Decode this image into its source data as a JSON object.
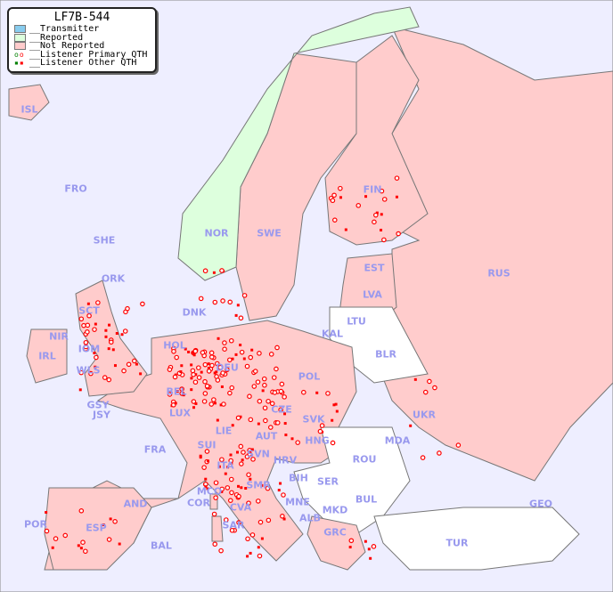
{
  "title": "LF7B-544",
  "legend": [
    {
      "label": "__Transmitter",
      "color": "#88ccee"
    },
    {
      "label": "__Reported",
      "color": "#ddffdd"
    },
    {
      "label": "__Not Reported",
      "color": "#ffcccc"
    },
    {
      "label": "__Listener Primary QTH",
      "marker": "circle"
    },
    {
      "label": "__Listener Other QTH",
      "marker": "square"
    }
  ],
  "colors": {
    "sea": "#eeeeff",
    "not_reported": "#ffcccc",
    "reported": "#ddffdd",
    "no_data": "#ffffff",
    "label": "#9999ee",
    "listener": "#ff0000"
  },
  "countries": [
    "ISL",
    "FRO",
    "SHE",
    "ORK",
    "NOR",
    "SWE",
    "FIN",
    "EST",
    "LVA",
    "RUS",
    "LTU",
    "KAL",
    "BLR",
    "DNK",
    "HOL",
    "POL",
    "DEU",
    "BEL",
    "LUX",
    "IRL",
    "WLS",
    "IOM",
    "NIR",
    "SCT",
    "GSY",
    "JSY",
    "FRA",
    "CZE",
    "SVK",
    "UKR",
    "MDA",
    "AUT",
    "HNG",
    "LIE",
    "SUI",
    "SVN",
    "HRV",
    "ITA",
    "ROU",
    "BIH",
    "SER",
    "BUL",
    "MCO",
    "COR",
    "SMR",
    "CVA",
    "MNE",
    "ALB",
    "MKD",
    "GEO",
    "AND",
    "POR",
    "ESP",
    "SAR",
    "BAL",
    "GRC",
    "TUR"
  ]
}
